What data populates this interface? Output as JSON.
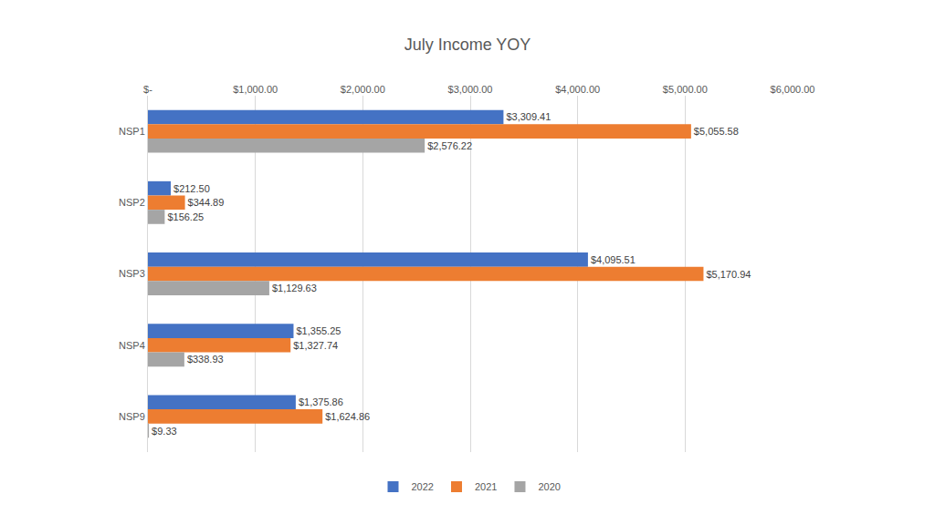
{
  "chart_data": {
    "type": "bar",
    "orientation": "horizontal",
    "title": "July Income YOY",
    "categories": [
      "NSP1",
      "NSP2",
      "NSP3",
      "NSP4",
      "NSP9"
    ],
    "series": [
      {
        "name": "2022",
        "color": "#4472c4",
        "values": [
          3309.41,
          212.5,
          4095.51,
          1355.25,
          1375.86
        ],
        "value_labels": [
          "$3,309.41",
          "$212.50",
          "$4,095.51",
          "$1,355.25",
          "$1,375.86"
        ]
      },
      {
        "name": "2021",
        "color": "#ed7d31",
        "values": [
          5055.58,
          344.89,
          5170.94,
          1327.74,
          1624.86
        ],
        "value_labels": [
          "$5,055.58",
          "$344.89",
          "$5,170.94",
          "$1,327.74",
          "$1,624.86"
        ]
      },
      {
        "name": "2020",
        "color": "#a5a5a5",
        "values": [
          2576.22,
          156.25,
          1129.63,
          338.93,
          9.33
        ],
        "value_labels": [
          "$2,576.22",
          "$156.25",
          "$1,129.63",
          "$338.93",
          "$9.33"
        ]
      }
    ],
    "xlim": [
      0,
      6000
    ],
    "xticks": [
      {
        "value": 0,
        "label": "$-"
      },
      {
        "value": 1000,
        "label": "$1,000.00"
      },
      {
        "value": 2000,
        "label": "$2,000.00"
      },
      {
        "value": 3000,
        "label": "$3,000.00"
      },
      {
        "value": 4000,
        "label": "$4,000.00"
      },
      {
        "value": 5000,
        "label": "$5,000.00"
      },
      {
        "value": 6000,
        "label": "$6,000.00"
      }
    ],
    "grid": true,
    "data_labels": true,
    "legend": "bottom"
  }
}
